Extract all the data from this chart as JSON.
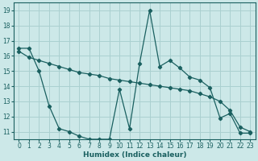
{
  "line1_x": [
    0,
    1,
    2,
    3,
    4,
    5,
    6,
    7,
    8,
    9,
    10,
    11,
    12,
    13,
    14,
    15,
    16,
    17,
    18,
    19,
    20,
    21,
    22,
    23
  ],
  "line1_y": [
    16.5,
    16.5,
    15.0,
    12.7,
    11.2,
    11.0,
    10.7,
    10.5,
    10.5,
    10.5,
    13.8,
    11.2,
    15.5,
    19.0,
    15.3,
    15.7,
    15.2,
    14.6,
    14.4,
    13.9,
    11.9,
    12.2,
    10.9,
    10.9
  ],
  "line2_x": [
    0,
    1,
    2,
    3,
    4,
    5,
    6,
    7,
    8,
    9,
    10,
    11,
    12,
    13,
    14,
    15,
    16,
    17,
    18,
    19,
    20,
    21,
    22,
    23
  ],
  "line2_y": [
    16.3,
    15.9,
    15.7,
    15.5,
    15.3,
    15.1,
    14.9,
    14.8,
    14.7,
    14.5,
    14.4,
    14.3,
    14.2,
    14.1,
    14.0,
    13.9,
    13.8,
    13.7,
    13.5,
    13.3,
    13.0,
    12.4,
    11.3,
    11.0
  ],
  "xlabel": "Humidex (Indice chaleur)",
  "ylim": [
    10.5,
    19.5
  ],
  "xlim": [
    -0.5,
    23.5
  ],
  "yticks": [
    11,
    12,
    13,
    14,
    15,
    16,
    17,
    18,
    19
  ],
  "xticks": [
    0,
    1,
    2,
    3,
    4,
    5,
    6,
    7,
    8,
    9,
    10,
    11,
    12,
    13,
    14,
    15,
    16,
    17,
    18,
    19,
    20,
    21,
    22,
    23
  ],
  "bg_color": "#cce8e8",
  "grid_color": "#aad0d0",
  "line_color": "#1a6060",
  "marker": "D",
  "marker_size": 2.2,
  "linewidth": 0.9
}
